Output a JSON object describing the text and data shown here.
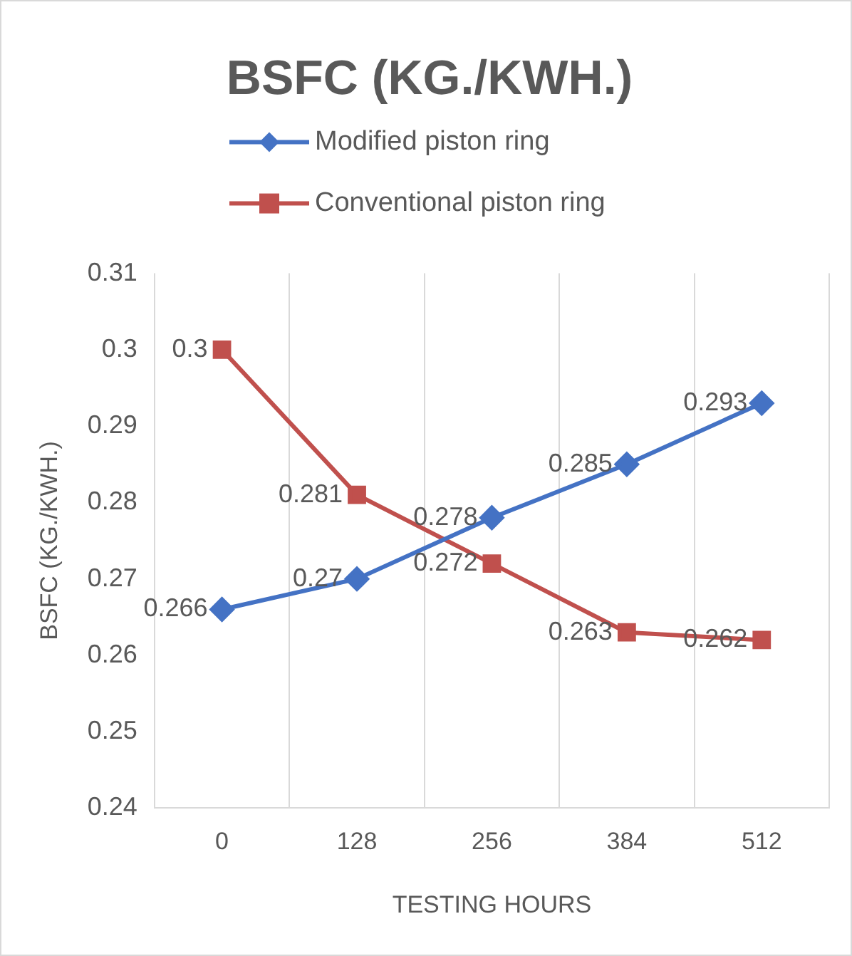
{
  "chart_data": {
    "type": "line",
    "title": "BSFC (KG./KWH.)",
    "xlabel": "TESTING HOURS",
    "ylabel": "BSFC (KG./KWH.)",
    "categories": [
      "0",
      "128",
      "256",
      "384",
      "512"
    ],
    "series": [
      {
        "name": "Modified piston ring",
        "color": "#4472c4",
        "marker": "diamond",
        "values": [
          0.266,
          0.27,
          0.278,
          0.285,
          0.293
        ]
      },
      {
        "name": "Conventional piston ring",
        "color": "#c0504d",
        "marker": "square",
        "values": [
          0.3,
          0.281,
          0.272,
          0.263,
          0.262
        ]
      }
    ],
    "ylim": [
      0.24,
      0.31
    ],
    "yticks": [
      0.24,
      0.25,
      0.26,
      0.27,
      0.28,
      0.29,
      0.3,
      0.31
    ],
    "grid": "x",
    "legend": "top",
    "data_labels": true
  }
}
